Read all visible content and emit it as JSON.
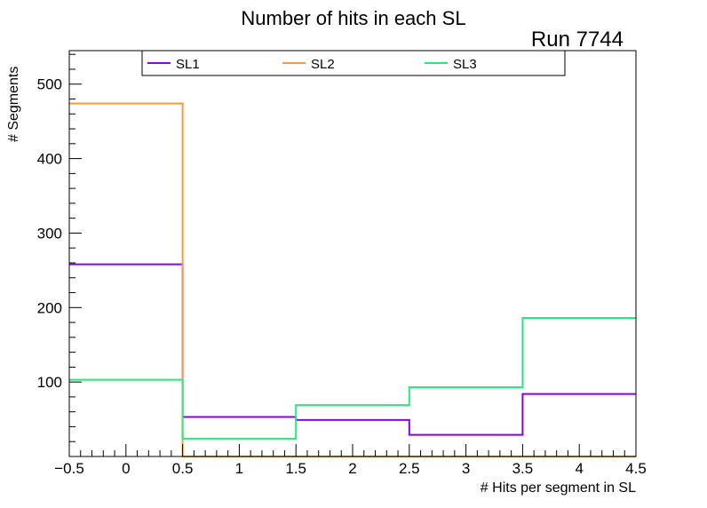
{
  "chart_data": {
    "type": "histogram-step",
    "title": "Number of hits in each SL",
    "annotation": "Run 7744",
    "xlabel": "# Hits per segment in SL",
    "ylabel": "# Segments",
    "xlim": [
      -0.5,
      4.5
    ],
    "ylim": [
      0,
      545
    ],
    "bin_edges": [
      -0.5,
      0.5,
      1.5,
      2.5,
      3.5,
      4.5
    ],
    "x_ticks": [
      {
        "value": -0.5,
        "label": "−0.5"
      },
      {
        "value": 0,
        "label": "0"
      },
      {
        "value": 0.5,
        "label": "0.5"
      },
      {
        "value": 1,
        "label": "1"
      },
      {
        "value": 1.5,
        "label": "1.5"
      },
      {
        "value": 2,
        "label": "2"
      },
      {
        "value": 2.5,
        "label": "2.5"
      },
      {
        "value": 3,
        "label": "3"
      },
      {
        "value": 3.5,
        "label": "3.5"
      },
      {
        "value": 4,
        "label": "4"
      },
      {
        "value": 4.5,
        "label": "4.5"
      }
    ],
    "y_ticks": [
      {
        "value": 100,
        "label": "100"
      },
      {
        "value": 200,
        "label": "200"
      },
      {
        "value": 300,
        "label": "300"
      },
      {
        "value": 400,
        "label": "400"
      },
      {
        "value": 500,
        "label": "500"
      }
    ],
    "legend_position": "top",
    "series": [
      {
        "name": "SL1",
        "color": "#8800ee",
        "values": [
          258,
          53,
          49,
          29,
          84
        ]
      },
      {
        "name": "SL2",
        "color": "#ff9933",
        "values": [
          474,
          0,
          0,
          0,
          0
        ]
      },
      {
        "name": "SL3",
        "color": "#22ee77",
        "values": [
          103,
          24,
          69,
          93,
          186
        ]
      }
    ]
  }
}
